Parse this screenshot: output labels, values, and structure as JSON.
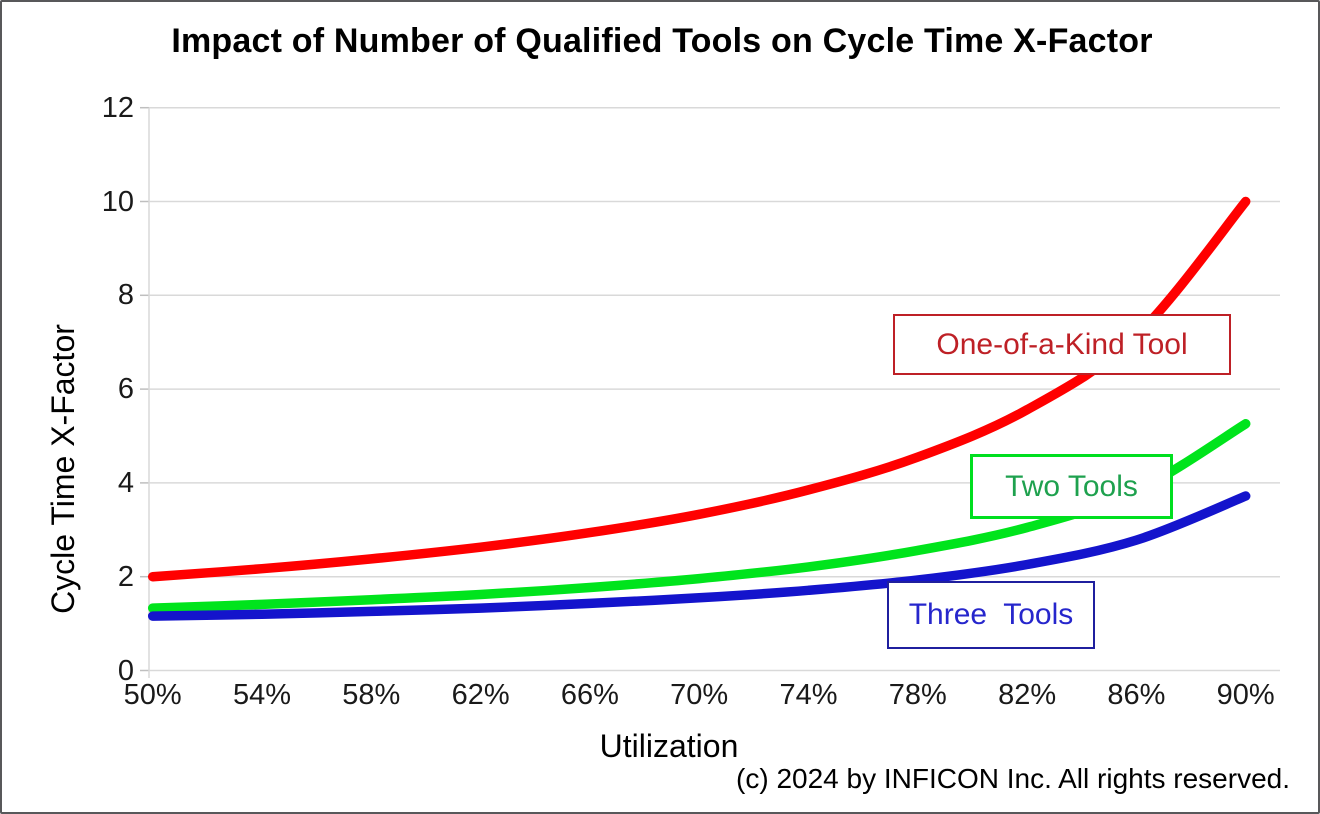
{
  "title": "Impact of Number of Qualified Tools on Cycle Time X-Factor",
  "footer": {
    "copyright": "(c) 2024 by INFICON Inc. All rights reserved."
  },
  "colors": {
    "background": "#FFFFFF",
    "frame_border": "#58585A",
    "gridline": "#D9D9D9",
    "axis_line": "#D9D9D9",
    "tick_mark": "#BFBFBF",
    "text": "#1A1A1A",
    "red_line": "#FF0000",
    "green_line": "#00E41C",
    "blue_line": "#1414CC",
    "red_label": "#BE2026",
    "green_label_text": "#1EA14E",
    "green_label_border": "#00DF1F",
    "blue_label_text": "#2626CC",
    "blue_label_border": "#1F1F9E"
  },
  "chart_data": {
    "type": "line",
    "title": "Impact of Number of Qualified Tools on Cycle Time X-Factor",
    "xlabel": "Utilization",
    "ylabel": "Cycle Time X-Factor",
    "x": [
      50,
      54,
      58,
      62,
      66,
      70,
      74,
      78,
      82,
      86,
      90
    ],
    "x_tick_labels": [
      "50%",
      "54%",
      "58%",
      "62%",
      "66%",
      "70%",
      "74%",
      "78%",
      "82%",
      "86%",
      "90%"
    ],
    "xlim": [
      50,
      90
    ],
    "y_ticks": [
      0,
      2,
      4,
      6,
      8,
      10,
      12
    ],
    "ylim": [
      0,
      12
    ],
    "grid": "horizontal",
    "legend_position": "boxed-annotations-on-plot",
    "series": [
      {
        "name": "One-of-a-Kind Tool",
        "label": "One-of-a-Kind Tool",
        "line_color": "#FF0000",
        "box_border_color": "#BE2026",
        "text_color": "#BE2026",
        "values": [
          2.0,
          2.17,
          2.38,
          2.63,
          2.94,
          3.33,
          3.85,
          4.55,
          5.56,
          7.14,
          10.0
        ]
      },
      {
        "name": "Two Tools",
        "label": "Two Tools",
        "line_color": "#00E41C",
        "box_border_color": "#00DF1F",
        "text_color": "#1EA14E",
        "values": [
          1.33,
          1.41,
          1.51,
          1.62,
          1.77,
          1.96,
          2.21,
          2.56,
          3.05,
          3.83,
          5.26
        ]
      },
      {
        "name": "Three Tools",
        "label": "Three  Tools",
        "line_color": "#1414CC",
        "box_border_color": "#1F1F9E",
        "text_color": "#2626CC",
        "values": [
          1.16,
          1.2,
          1.26,
          1.33,
          1.43,
          1.55,
          1.71,
          1.93,
          2.26,
          2.78,
          3.72
        ]
      }
    ]
  }
}
